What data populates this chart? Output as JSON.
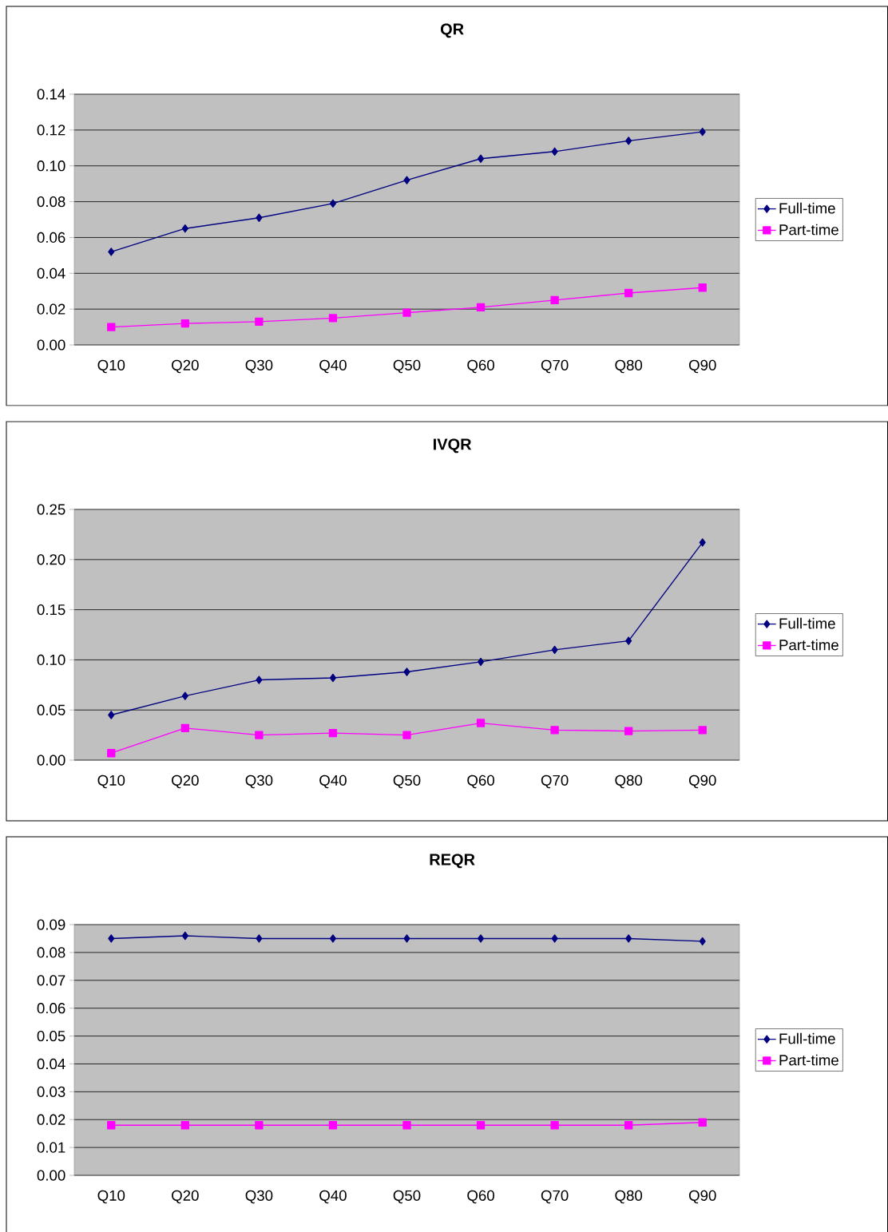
{
  "chart_data": [
    {
      "type": "line",
      "title": "QR",
      "categories": [
        "Q10",
        "Q20",
        "Q30",
        "Q40",
        "Q50",
        "Q60",
        "Q70",
        "Q80",
        "Q90"
      ],
      "series": [
        {
          "name": "Full-time",
          "color": "#000080",
          "marker": "diamond",
          "values": [
            0.052,
            0.065,
            0.071,
            0.079,
            0.092,
            0.104,
            0.108,
            0.114,
            0.119
          ]
        },
        {
          "name": "Part-time",
          "color": "#ff00ff",
          "marker": "square",
          "values": [
            0.01,
            0.012,
            0.013,
            0.015,
            0.018,
            0.021,
            0.025,
            0.029,
            0.032
          ]
        }
      ],
      "ylim": [
        0,
        0.14
      ],
      "yticks": [
        {
          "value": 0,
          "label": "0.00"
        },
        {
          "value": 0.02,
          "label": "0.02"
        },
        {
          "value": 0.04,
          "label": "0.04"
        },
        {
          "value": 0.06,
          "label": "0.06"
        },
        {
          "value": 0.08,
          "label": "0.08"
        },
        {
          "value": 0.1,
          "label": "0.10"
        },
        {
          "value": 0.12,
          "label": "0.12"
        },
        {
          "value": 0.14,
          "label": "0.14"
        }
      ],
      "grid": "y",
      "legend": "right"
    },
    {
      "type": "line",
      "title": "IVQR",
      "categories": [
        "Q10",
        "Q20",
        "Q30",
        "Q40",
        "Q50",
        "Q60",
        "Q70",
        "Q80",
        "Q90"
      ],
      "series": [
        {
          "name": "Full-time",
          "color": "#000080",
          "marker": "diamond",
          "values": [
            0.045,
            0.064,
            0.08,
            0.082,
            0.088,
            0.098,
            0.11,
            0.119,
            0.217
          ]
        },
        {
          "name": "Part-time",
          "color": "#ff00ff",
          "marker": "square",
          "values": [
            0.007,
            0.032,
            0.025,
            0.027,
            0.025,
            0.037,
            0.03,
            0.029,
            0.03
          ]
        }
      ],
      "ylim": [
        0,
        0.25
      ],
      "yticks": [
        {
          "value": 0,
          "label": "0.00"
        },
        {
          "value": 0.05,
          "label": "0.05"
        },
        {
          "value": 0.1,
          "label": "0.10"
        },
        {
          "value": 0.15,
          "label": "0.15"
        },
        {
          "value": 0.2,
          "label": "0.20"
        },
        {
          "value": 0.25,
          "label": "0.25"
        }
      ],
      "grid": "y",
      "legend": "right"
    },
    {
      "type": "line",
      "title": "REQR",
      "categories": [
        "Q10",
        "Q20",
        "Q30",
        "Q40",
        "Q50",
        "Q60",
        "Q70",
        "Q80",
        "Q90"
      ],
      "series": [
        {
          "name": "Full-time",
          "color": "#000080",
          "marker": "diamond",
          "values": [
            0.085,
            0.086,
            0.085,
            0.085,
            0.085,
            0.085,
            0.085,
            0.085,
            0.084
          ]
        },
        {
          "name": "Part-time",
          "color": "#ff00ff",
          "marker": "square",
          "values": [
            0.018,
            0.018,
            0.018,
            0.018,
            0.018,
            0.018,
            0.018,
            0.018,
            0.019
          ]
        }
      ],
      "ylim": [
        0,
        0.09
      ],
      "yticks": [
        {
          "value": 0,
          "label": "0.00"
        },
        {
          "value": 0.01,
          "label": "0.01"
        },
        {
          "value": 0.02,
          "label": "0.02"
        },
        {
          "value": 0.03,
          "label": "0.03"
        },
        {
          "value": 0.04,
          "label": "0.04"
        },
        {
          "value": 0.05,
          "label": "0.05"
        },
        {
          "value": 0.06,
          "label": "0.06"
        },
        {
          "value": 0.07,
          "label": "0.07"
        },
        {
          "value": 0.08,
          "label": "0.08"
        },
        {
          "value": 0.09,
          "label": "0.09"
        }
      ],
      "grid": "y",
      "legend": "right"
    }
  ]
}
